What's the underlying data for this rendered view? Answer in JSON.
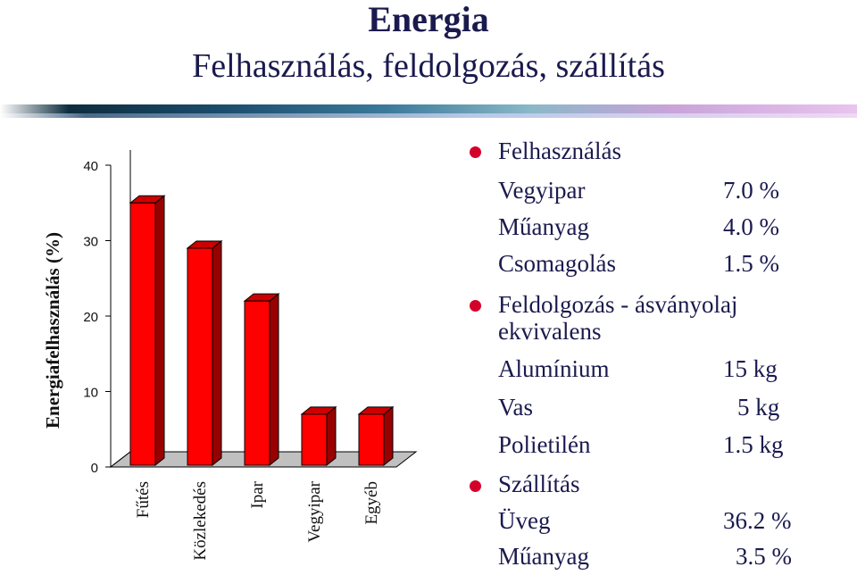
{
  "title": "Energia",
  "subtitle": "Felhasználás, feldolgozás, szállítás",
  "colors": {
    "bar_front": "#ff0000",
    "bar_side": "#990000",
    "bar_top": "#cc0000",
    "floor": "#c0c0c0"
  },
  "chart_data": {
    "type": "bar",
    "categories": [
      "Fűtés",
      "Közlekedés",
      "Ipar",
      "Vegyipar",
      "Egyéb"
    ],
    "values": [
      35,
      29,
      22,
      7,
      7
    ],
    "ylabel": "Energiafelhasználás (%)",
    "ylim": [
      0,
      40
    ],
    "yticks": [
      "0",
      "10",
      "20",
      "30",
      "40"
    ],
    "grid": false
  },
  "list": {
    "sections": [
      {
        "heading": "Felhasználás",
        "items": [
          {
            "label": "Vegyipar",
            "value": "7.0 %"
          },
          {
            "label": "Műanyag",
            "value": "4.0 %"
          },
          {
            "label": "Csomagolás",
            "value": "1.5 %"
          }
        ]
      },
      {
        "heading": "Feldolgozás - ásványolaj",
        "heading2": "ekvivalens",
        "items": [
          {
            "label": "Alumínium",
            "value": "15  kg"
          },
          {
            "label": "Vas",
            "value": "5  kg"
          },
          {
            "label": "Polietilén",
            "value": "1.5 kg"
          }
        ]
      },
      {
        "heading": "Szállítás",
        "items": [
          {
            "label": "Üveg",
            "value": "36.2 %"
          },
          {
            "label": "Műanyag",
            "value": "3.5 %"
          }
        ]
      }
    ]
  }
}
